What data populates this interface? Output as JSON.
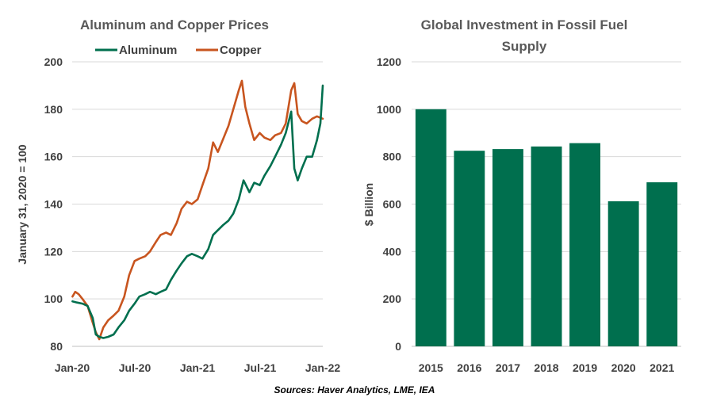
{
  "colors": {
    "aluminum": "#006F4E",
    "copper": "#C8551F",
    "bars": "#006F4E",
    "grid": "#D9D9D9",
    "axis": "#BFBFBF"
  },
  "source": "Sources: Haver Analytics, LME, IEA",
  "chart_data": [
    {
      "type": "line",
      "title": "Aluminum and Copper Prices",
      "ylabel": "January 31, 2020 = 100",
      "xlabel": "",
      "x_ticks": [
        "Jan-20",
        "Jul-20",
        "Jan-21",
        "Jul-21",
        "Jan-22"
      ],
      "x_range": [
        "2020-01-01",
        "2022-01-01"
      ],
      "ylim": [
        80,
        200
      ],
      "y_ticks": [
        80,
        100,
        120,
        140,
        160,
        180,
        200
      ],
      "grid": true,
      "legend": "top",
      "series": [
        {
          "name": "Aluminum",
          "color": "#006F4E",
          "x": [
            "2020-01-02",
            "2020-01-15",
            "2020-01-31",
            "2020-02-15",
            "2020-03-01",
            "2020-03-10",
            "2020-03-20",
            "2020-04-01",
            "2020-04-15",
            "2020-05-01",
            "2020-05-15",
            "2020-06-01",
            "2020-06-15",
            "2020-07-01",
            "2020-07-15",
            "2020-08-01",
            "2020-08-15",
            "2020-09-01",
            "2020-09-15",
            "2020-10-01",
            "2020-10-15",
            "2020-11-01",
            "2020-11-15",
            "2020-12-01",
            "2020-12-15",
            "2021-01-01",
            "2021-01-15",
            "2021-02-01",
            "2021-02-15",
            "2021-03-01",
            "2021-03-15",
            "2021-04-01",
            "2021-04-15",
            "2021-05-01",
            "2021-05-15",
            "2021-06-01",
            "2021-06-15",
            "2021-07-01",
            "2021-07-15",
            "2021-08-01",
            "2021-08-15",
            "2021-09-01",
            "2021-09-15",
            "2021-10-01",
            "2021-10-10",
            "2021-10-20",
            "2021-11-01",
            "2021-11-15",
            "2021-12-01",
            "2021-12-15",
            "2021-12-25",
            "2022-01-01"
          ],
          "values": [
            99,
            98.5,
            98,
            97,
            92,
            85,
            84,
            83.5,
            84,
            85,
            88,
            91,
            95,
            98,
            101,
            102,
            103,
            102,
            103,
            104,
            108,
            112,
            115,
            118,
            119,
            118,
            117,
            121,
            127,
            129,
            131,
            133,
            136,
            142,
            150,
            145,
            149,
            148,
            152,
            156,
            160,
            165,
            170,
            179,
            155,
            150,
            155,
            160,
            160,
            167,
            174,
            190
          ]
        },
        {
          "name": "Copper",
          "color": "#C8551F",
          "x": [
            "2020-01-02",
            "2020-01-10",
            "2020-01-20",
            "2020-01-31",
            "2020-02-15",
            "2020-03-01",
            "2020-03-10",
            "2020-03-20",
            "2020-04-01",
            "2020-04-15",
            "2020-05-01",
            "2020-05-15",
            "2020-06-01",
            "2020-06-15",
            "2020-07-01",
            "2020-07-15",
            "2020-08-01",
            "2020-08-15",
            "2020-09-01",
            "2020-09-15",
            "2020-10-01",
            "2020-10-15",
            "2020-11-01",
            "2020-11-15",
            "2020-12-01",
            "2020-12-15",
            "2021-01-01",
            "2021-01-15",
            "2021-02-01",
            "2021-02-15",
            "2021-03-01",
            "2021-03-15",
            "2021-04-01",
            "2021-04-15",
            "2021-05-01",
            "2021-05-10",
            "2021-05-20",
            "2021-06-01",
            "2021-06-15",
            "2021-07-01",
            "2021-07-15",
            "2021-08-01",
            "2021-08-15",
            "2021-09-01",
            "2021-09-15",
            "2021-10-01",
            "2021-10-10",
            "2021-10-20",
            "2021-11-01",
            "2021-11-15",
            "2021-12-01",
            "2021-12-15",
            "2022-01-01"
          ],
          "values": [
            101,
            103,
            102,
            100,
            97,
            90,
            86,
            83,
            88,
            91,
            93,
            95,
            101,
            110,
            116,
            117,
            118,
            120,
            124,
            127,
            128,
            127,
            132,
            138,
            141,
            140,
            142,
            148,
            155,
            166,
            162,
            167,
            173,
            180,
            188,
            192,
            181,
            174,
            167,
            170,
            168,
            167,
            169,
            170,
            174,
            188,
            191,
            178,
            175,
            174,
            176,
            177,
            176
          ]
        }
      ]
    },
    {
      "type": "bar",
      "title": "Global Investment in Fossil Fuel Supply",
      "title_lines": [
        "Global Investment in Fossil Fuel",
        "Supply"
      ],
      "ylabel": "$ Billion",
      "xlabel": "",
      "categories": [
        "2015",
        "2016",
        "2017",
        "2018",
        "2019",
        "2020",
        "2021"
      ],
      "values": [
        1000,
        825,
        832,
        843,
        857,
        612,
        692
      ],
      "ylim": [
        0,
        1200
      ],
      "y_ticks": [
        0,
        200,
        400,
        600,
        800,
        1000,
        1200
      ],
      "grid": true
    }
  ]
}
